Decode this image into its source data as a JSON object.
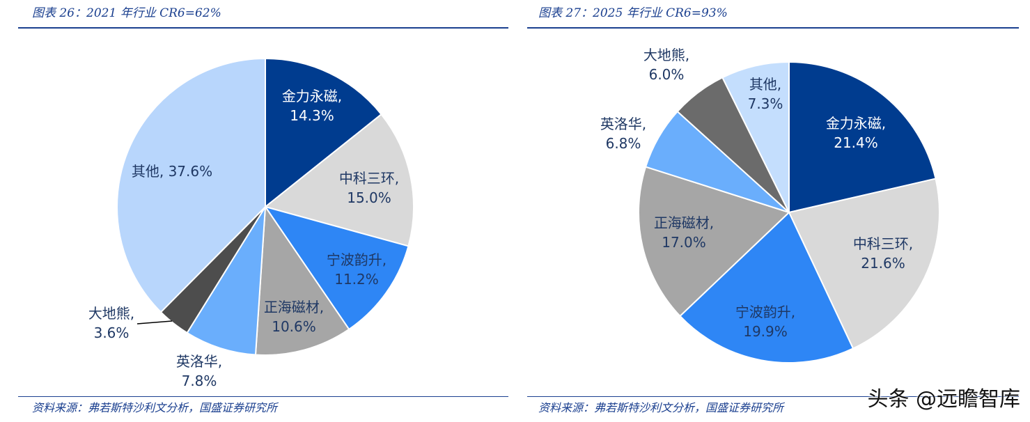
{
  "chart_data": [
    {
      "type": "pie",
      "title": "图表 26：2021 年行业 CR6=62%",
      "source": "资料来源：弗若斯特沙利文分析，国盛证券研究所",
      "slices": [
        {
          "name": "金力永磁",
          "value": 14.3,
          "value_label": "14.3%",
          "color": "#003c8f"
        },
        {
          "name": "中科三环",
          "value": 15.0,
          "value_label": "15.0%",
          "color": "#d9d9d9"
        },
        {
          "name": "宁波韵升",
          "value": 11.2,
          "value_label": "11.2%",
          "color": "#2e86f5"
        },
        {
          "name": "正海磁材",
          "value": 10.6,
          "value_label": "10.6%",
          "color": "#a6a6a6"
        },
        {
          "name": "英洛华",
          "value": 7.8,
          "value_label": "7.8%",
          "color": "#6aaefc"
        },
        {
          "name": "大地熊",
          "value": 3.6,
          "value_label": "3.6%",
          "color": "#4d4d4d"
        },
        {
          "name": "其他",
          "value": 37.6,
          "value_label": "37.6%",
          "color": "#b8d6fc"
        }
      ]
    },
    {
      "type": "pie",
      "title": "图表 27：2025 年行业 CR6=93%",
      "source": "资料来源：弗若斯特沙利文分析，国盛证券研究所",
      "slices": [
        {
          "name": "金力永磁",
          "value": 21.4,
          "value_label": "21.4%",
          "color": "#003c8f"
        },
        {
          "name": "中科三环",
          "value": 21.6,
          "value_label": "21.6%",
          "color": "#d9d9d9"
        },
        {
          "name": "宁波韵升",
          "value": 19.9,
          "value_label": "19.9%",
          "color": "#2e86f5"
        },
        {
          "name": "正海磁材",
          "value": 17.0,
          "value_label": "17.0%",
          "color": "#a6a6a6"
        },
        {
          "name": "英洛华",
          "value": 6.8,
          "value_label": "6.8%",
          "color": "#6aaefc"
        },
        {
          "name": "大地熊",
          "value": 6.0,
          "value_label": "6.0%",
          "color": "#6b6b6b"
        },
        {
          "name": "其他",
          "value": 7.3,
          "value_label": "7.3%",
          "color": "#c4defd"
        }
      ]
    }
  ],
  "watermark": "头条 @远瞻智库"
}
